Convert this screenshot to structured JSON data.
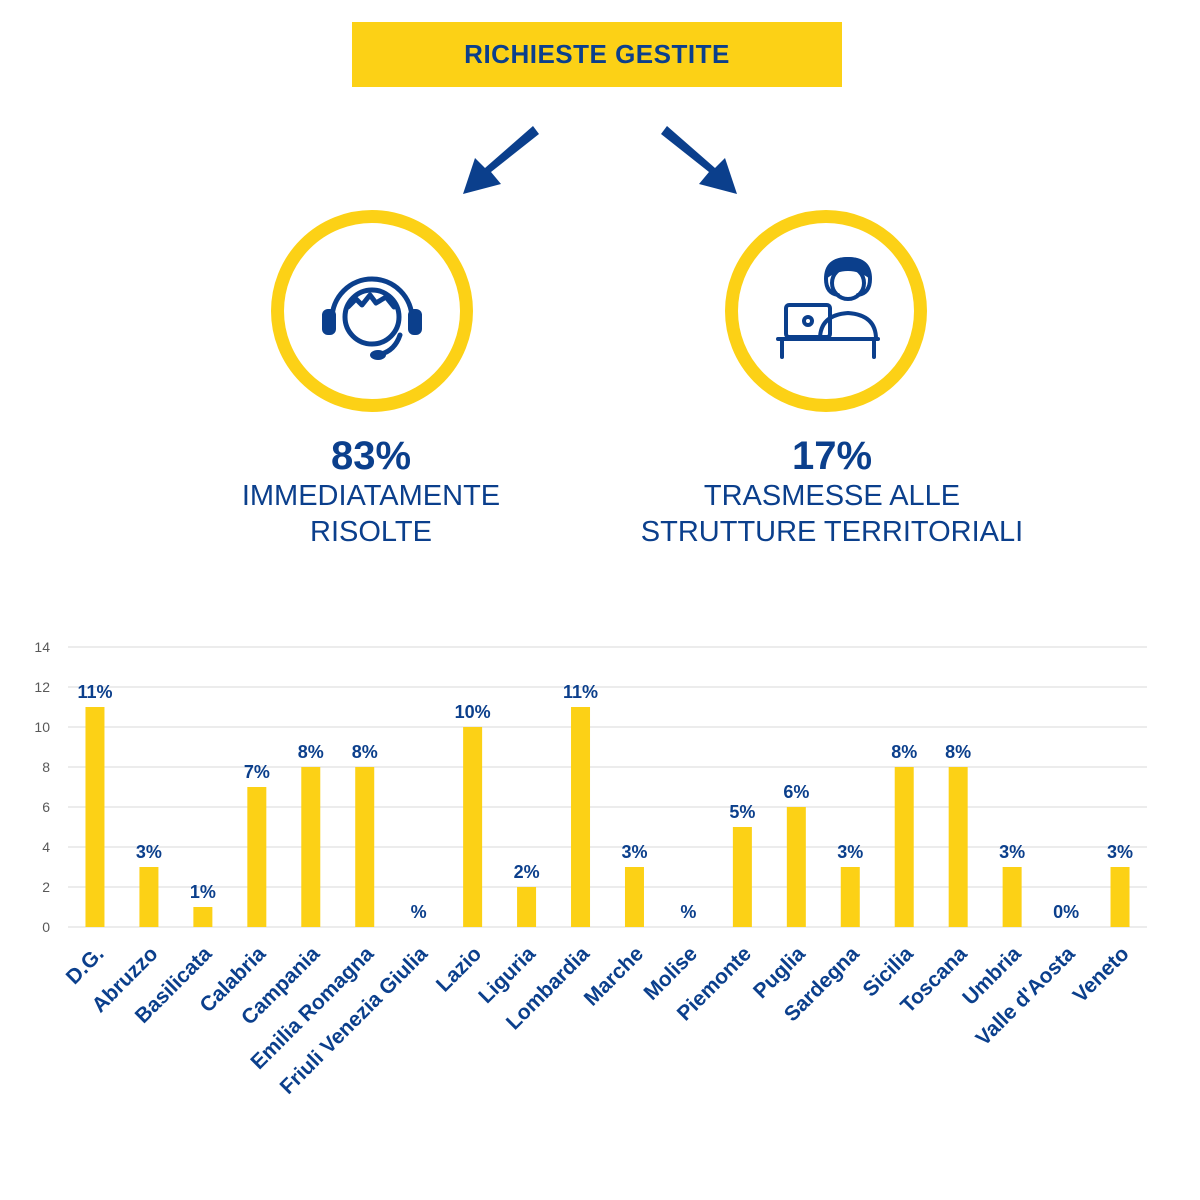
{
  "header": {
    "title": "RICHIESTE GESTITE"
  },
  "stats": [
    {
      "percent": "83%",
      "line1": "IMMEDIATAMENTE",
      "line2": "RISOLTE",
      "icon": "headset-operator-icon"
    },
    {
      "percent": "17%",
      "line1": "TRASMESSE ALLE",
      "line2": "STRUTTURE TERRITORIALI",
      "icon": "person-at-laptop-icon"
    }
  ],
  "colors": {
    "accent": "#fcd116",
    "brand": "#0b3f8c",
    "grid": "#d9d9d9",
    "axis_text": "#595959"
  },
  "chart_data": {
    "type": "bar",
    "categories": [
      "D.G.",
      "Abruzzo",
      "Basilicata",
      "Calabria",
      "Campania",
      "Emilia Romagna",
      "Friuli Venezia Giulia",
      "Lazio",
      "Liguria",
      "Lombardia",
      "Marche",
      "Molise",
      "Piemonte",
      "Puglia",
      "Sardegna",
      "Sicilia",
      "Toscana",
      "Umbria",
      "Valle d'Aosta",
      "Veneto"
    ],
    "values": [
      11,
      3,
      1,
      7,
      8,
      8,
      0,
      10,
      2,
      11,
      3,
      0,
      5,
      6,
      3,
      8,
      8,
      3,
      0,
      3
    ],
    "data_labels": [
      "11%",
      "3%",
      "1%",
      "7%",
      "8%",
      "8%",
      "%",
      "10%",
      "2%",
      "11%",
      "3%",
      "%",
      "5%",
      "6%",
      "3%",
      "8%",
      "8%",
      "3%",
      "0%",
      "3%"
    ],
    "ylim": [
      0,
      14
    ],
    "yticks": [
      0,
      2,
      4,
      6,
      8,
      10,
      12,
      14
    ],
    "grid": true,
    "legend": "none",
    "title": "",
    "xlabel": "",
    "ylabel": ""
  }
}
